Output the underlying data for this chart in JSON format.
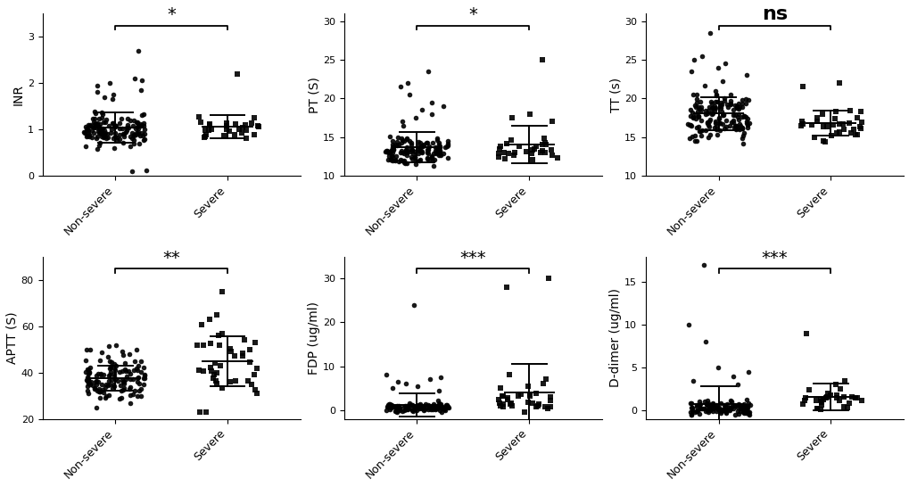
{
  "panels": [
    {
      "ylabel": "INR",
      "ylim": [
        0,
        3.5
      ],
      "yticks": [
        0,
        1,
        2,
        3
      ],
      "significance": "*",
      "sig_fontsize": 14,
      "sig_bold": false,
      "nonsevere_mean": 0.99,
      "nonsevere_sd": 0.18,
      "nonsevere_n": 130,
      "severe_mean": 1.02,
      "severe_sd": 0.12,
      "severe_n": 28,
      "nonsevere_outliers": [
        2.7,
        0.1,
        0.12,
        2.0,
        1.95,
        2.05,
        2.1,
        1.85,
        1.8,
        1.75,
        1.7,
        1.65
      ],
      "severe_outliers": [
        2.2
      ]
    },
    {
      "ylabel": "PT (S)",
      "ylim": [
        10,
        31
      ],
      "yticks": [
        10,
        15,
        20,
        25,
        30
      ],
      "significance": "*",
      "sig_fontsize": 14,
      "sig_bold": false,
      "nonsevere_mean": 13.2,
      "nonsevere_sd": 0.9,
      "nonsevere_n": 130,
      "severe_mean": 13.6,
      "severe_sd": 0.7,
      "severe_n": 28,
      "nonsevere_outliers": [
        23.5,
        22.0,
        21.5,
        20.5,
        19.5,
        19.0,
        18.5,
        18.0,
        17.5,
        17.0,
        16.5
      ],
      "severe_outliers": [
        25.0,
        18.0,
        17.5,
        17.0
      ]
    },
    {
      "ylabel": "TT (s)",
      "ylim": [
        10,
        31
      ],
      "yticks": [
        10,
        15,
        20,
        25,
        30
      ],
      "significance": "ns",
      "sig_fontsize": 16,
      "sig_bold": true,
      "nonsevere_mean": 17.8,
      "nonsevere_sd": 1.5,
      "nonsevere_n": 150,
      "severe_mean": 16.5,
      "severe_sd": 1.3,
      "severe_n": 32,
      "nonsevere_outliers": [
        28.5,
        25.5,
        25.0,
        24.5,
        24.0,
        23.5,
        23.0
      ],
      "severe_outliers": [
        22.0,
        21.5
      ]
    },
    {
      "ylabel": "APTT (S)",
      "ylim": [
        20,
        90
      ],
      "yticks": [
        20,
        40,
        60,
        80
      ],
      "significance": "**",
      "sig_fontsize": 14,
      "sig_bold": false,
      "nonsevere_mean": 38.4,
      "nonsevere_sd": 6.0,
      "nonsevere_n": 130,
      "severe_mean": 42.1,
      "severe_sd": 7.5,
      "severe_n": 38,
      "nonsevere_outliers": [],
      "severe_outliers": [
        75.0,
        65.0,
        63.0
      ]
    },
    {
      "ylabel": "FDP (ug/ml)",
      "ylim": [
        -2,
        35
      ],
      "yticks": [
        0,
        10,
        20,
        30
      ],
      "significance": "***",
      "sig_fontsize": 14,
      "sig_bold": false,
      "nonsevere_mean": 0.65,
      "nonsevere_sd": 0.5,
      "nonsevere_n": 110,
      "severe_mean": 2.03,
      "severe_sd": 1.2,
      "severe_n": 28,
      "nonsevere_outliers": [
        24.0,
        8.0,
        7.5,
        7.0,
        6.5,
        6.0,
        5.5,
        5.0,
        4.5
      ],
      "severe_outliers": [
        30.0,
        28.0,
        8.0,
        7.0,
        6.0,
        5.5,
        5.0
      ]
    },
    {
      "ylabel": "D-dimer (ug/ml)",
      "ylim": [
        -1,
        18
      ],
      "yticks": [
        0,
        5,
        10,
        15
      ],
      "significance": "***",
      "sig_fontsize": 14,
      "sig_bold": false,
      "nonsevere_mean": 0.27,
      "nonsevere_sd": 0.4,
      "nonsevere_n": 110,
      "severe_mean": 1.0,
      "severe_sd": 0.6,
      "severe_n": 28,
      "nonsevere_outliers": [
        17.0,
        10.0,
        8.0,
        5.0,
        4.5,
        4.0,
        3.5,
        3.0
      ],
      "severe_outliers": [
        9.0,
        3.5,
        3.0,
        2.5
      ]
    }
  ],
  "background_color": "#ffffff",
  "markersize": 4,
  "categories": [
    "Non-severe",
    "Severe"
  ]
}
